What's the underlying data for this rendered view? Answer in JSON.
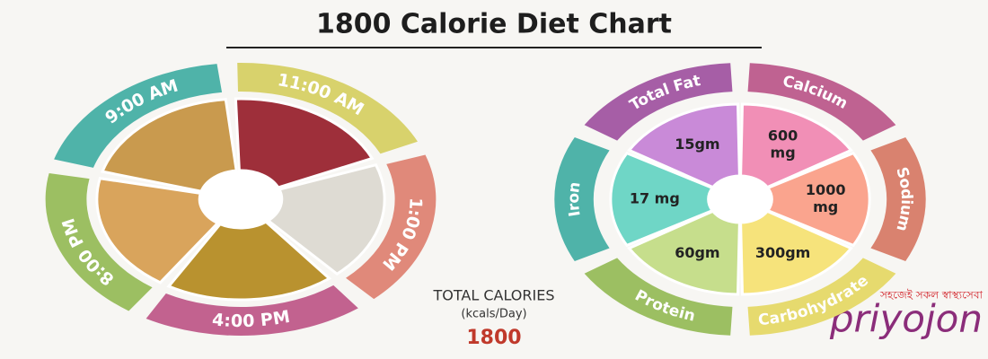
{
  "header": {
    "title": "1800 Calorie Diet Chart"
  },
  "meal_wheel": {
    "segments": [
      {
        "time": "9:00 AM",
        "color": "#4fb3a9",
        "food_color": "#c99a4e"
      },
      {
        "time": "11:00 AM",
        "color": "#d8d26c",
        "food_color": "#9e2f3a"
      },
      {
        "time": "1:00 PM",
        "color": "#e0897a",
        "food_color": "#dedbd3"
      },
      {
        "time": "4:00 PM",
        "color": "#c2628f",
        "food_color": "#b9922f"
      },
      {
        "time": "8:00 PM",
        "color": "#9cbf62",
        "food_color": "#d9a45c"
      }
    ]
  },
  "nutrient_wheel": {
    "segments": [
      {
        "label": "Total Fat",
        "value": [
          "15gm"
        ],
        "color": "#a65ea6",
        "fill": "#c98ad8"
      },
      {
        "label": "Calcium",
        "value": [
          "600",
          "mg"
        ],
        "color": "#bf6291",
        "fill": "#f18fb6"
      },
      {
        "label": "Sodium",
        "value": [
          "1000",
          "mg"
        ],
        "color": "#d9826f",
        "fill": "#faa48e"
      },
      {
        "label": "Carbohydrate",
        "value": [
          "300gm"
        ],
        "color": "#e6da6e",
        "fill": "#f6e37b"
      },
      {
        "label": "Protein",
        "value": [
          "60gm"
        ],
        "color": "#9cbf62",
        "fill": "#c6de8c"
      },
      {
        "label": "Iron",
        "value": [
          "17 mg"
        ],
        "color": "#4fb3a9",
        "fill": "#6fd6c6"
      }
    ]
  },
  "total": {
    "label": "TOTAL CALORIES",
    "unit": "(kcals/Day)",
    "value": "1800"
  },
  "logo": {
    "tagline": "সহজেই সকল স্বাস্থ্যসেবা",
    "name": "priyojon"
  }
}
